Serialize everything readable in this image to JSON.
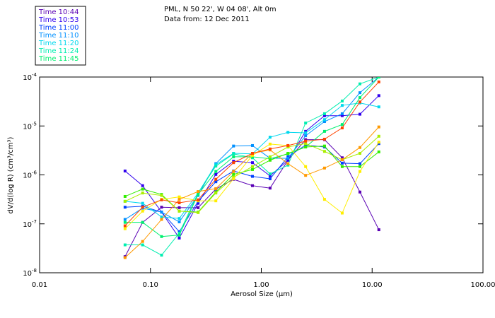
{
  "header": {
    "line1": "PML, N 50 22', W 04 08', Alt 0m",
    "line2": "Data from: 12 Dec 2011"
  },
  "chart_data": {
    "type": "line",
    "title": "PML, N 50 22', W 04 08', Alt 0m",
    "subtitle": "Data from: 12 Dec 2011",
    "xlabel": "Aerosol Size (μm)",
    "ylabel": "dV/d(log R) (cm³/cm³)",
    "x_scale": "log",
    "y_scale": "log",
    "xlim": [
      0.01,
      100
    ],
    "ylim": [
      1e-08,
      0.0001
    ],
    "x_ticks": [
      "0.01",
      "0.10",
      "1.00",
      "10.00",
      "100.00"
    ],
    "y_ticks": [
      {
        "base": "10",
        "exp": "-4",
        "value": -4
      },
      {
        "base": "10",
        "exp": "-5",
        "value": -5
      },
      {
        "base": "10",
        "exp": "-6",
        "value": -6
      },
      {
        "base": "10",
        "exp": "-7",
        "value": -7
      },
      {
        "base": "10",
        "exp": "-8",
        "value": -8
      }
    ],
    "legend_placement": "top-left",
    "x": [
      0.059,
      0.085,
      0.126,
      0.182,
      0.269,
      0.389,
      0.562,
      0.832,
      1.2,
      1.74,
      2.51,
      3.72,
      5.37,
      7.76,
      11.5
    ],
    "y_values_are": "log10(dV/dlogR)",
    "series": [
      {
        "name": "Time 10:44",
        "color": "#5a00b4",
        "log10_values": [
          -7.67,
          -6.97,
          -6.66,
          -6.67,
          -6.67,
          -6.29,
          -6.09,
          -6.22,
          -6.27,
          -5.7,
          -5.28,
          -5.28,
          -5.65,
          -6.35,
          -7.12
        ]
      },
      {
        "name": "Time 10:53",
        "color": "#3000ee",
        "log10_values": [
          -5.92,
          -6.22,
          -6.76,
          -7.29,
          -6.58,
          -5.99,
          -5.72,
          -5.75,
          -6.02,
          -5.7,
          -5.11,
          -4.79,
          -4.79,
          -4.76,
          -4.38
        ]
      },
      {
        "name": "Time 11:00",
        "color": "#0040ff",
        "log10_values": [
          -6.66,
          -6.64,
          -6.76,
          -7.16,
          -6.54,
          -6.14,
          -5.92,
          -6.03,
          -6.08,
          -5.63,
          -5.39,
          -5.43,
          -5.76,
          -5.77,
          -5.36
        ]
      },
      {
        "name": "Time 11:10",
        "color": "#0090ff",
        "log10_values": [
          -6.91,
          -6.68,
          -6.76,
          -6.96,
          -6.42,
          -5.77,
          -5.41,
          -5.4,
          -5.66,
          -5.66,
          -5.2,
          -4.91,
          -4.75,
          -4.32,
          -4.0
        ]
      },
      {
        "name": "Time 11:20",
        "color": "#00d8ee",
        "log10_values": [
          -6.54,
          -6.58,
          -6.86,
          -6.89,
          -6.37,
          -5.79,
          -5.56,
          -5.57,
          -5.23,
          -5.13,
          -5.14,
          -4.87,
          -4.58,
          -4.53,
          -4.61
        ]
      },
      {
        "name": "Time 11:24",
        "color": "#00eeb0",
        "log10_values": [
          -7.43,
          -7.43,
          -7.64,
          -7.19,
          -6.37,
          -5.82,
          -5.57,
          -5.65,
          -5.98,
          -5.8,
          -4.94,
          -4.75,
          -4.49,
          -4.14,
          -4.0
        ]
      },
      {
        "name": "Time 11:45",
        "color": "#00f070",
        "log10_values": [
          -6.97,
          -6.97,
          -7.26,
          -7.23,
          -6.4,
          -5.93,
          -5.63,
          -5.63,
          -5.67,
          -5.57,
          -5.43,
          -5.11,
          -4.97,
          -4.42,
          -4.0
        ]
      },
      {
        "name": "",
        "color": "#33ee00",
        "log10_values": [
          -6.44,
          -6.29,
          -6.4,
          -6.74,
          -6.76,
          -6.35,
          -5.99,
          -5.89,
          -5.7,
          -5.56,
          -5.43,
          -5.41,
          -5.83,
          -5.83,
          -5.53
        ]
      },
      {
        "name": "",
        "color": "#aaee00",
        "log10_values": [
          -6.54,
          -6.37,
          -6.42,
          -6.74,
          -6.77,
          -6.37,
          -6.05,
          -5.83,
          -5.63,
          -5.43,
          -5.36,
          -5.52,
          -5.69,
          -5.56,
          -5.21
        ]
      },
      {
        "name": "",
        "color": "#ffee00",
        "log10_values": [
          -7.1,
          -6.74,
          -6.5,
          -6.45,
          -6.53,
          -6.53,
          -6.08,
          -5.6,
          -5.37,
          -5.4,
          -5.83,
          -6.5,
          -6.78,
          -5.93,
          -5.33
        ]
      },
      {
        "name": "",
        "color": "#ff9900",
        "log10_values": [
          -7.69,
          -7.36,
          -6.91,
          -6.5,
          -6.34,
          -6.28,
          -5.93,
          -5.56,
          -5.49,
          -5.77,
          -6.01,
          -5.86,
          -5.69,
          -5.44,
          -5.02
        ]
      },
      {
        "name": "",
        "color": "#ff4400",
        "log10_values": [
          -7.04,
          -6.66,
          -6.51,
          -6.57,
          -6.51,
          -6.09,
          -5.75,
          -5.56,
          -5.47,
          -5.4,
          -5.31,
          -5.27,
          -5.04,
          -4.51,
          -4.1
        ]
      }
    ]
  }
}
